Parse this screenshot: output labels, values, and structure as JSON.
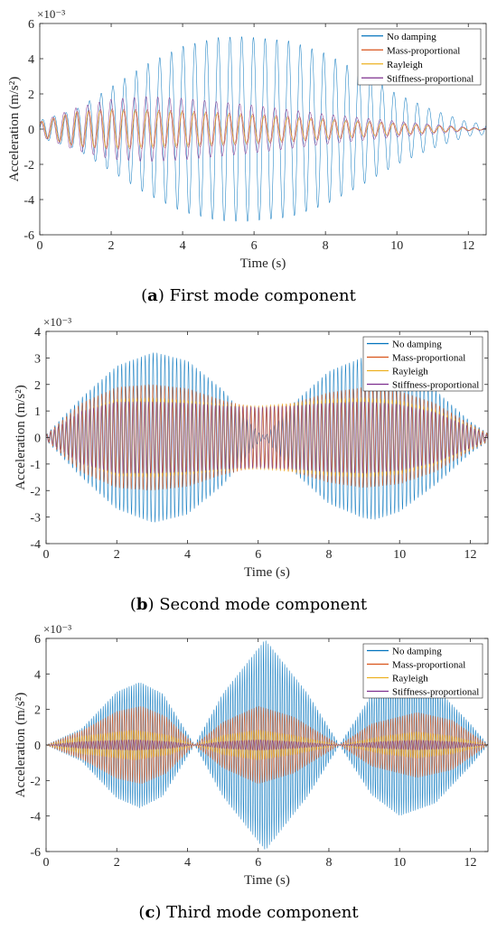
{
  "panels": [
    {
      "caption_letter": "a",
      "caption_text": "First mode component",
      "chart_data": {
        "type": "line",
        "title": "",
        "xlabel": "Time (s)",
        "ylabel": "Acceleration (m/s²)",
        "y_multiplier_label": "×10⁻³",
        "xlim": [
          0,
          12.5
        ],
        "ylim": [
          -6,
          6
        ],
        "xticks": [
          0,
          2,
          4,
          6,
          8,
          10,
          12
        ],
        "yticks": [
          -6,
          -4,
          -2,
          0,
          2,
          4,
          6
        ],
        "legend_position": "top-right",
        "series": [
          {
            "name": "No damping",
            "color": "#0072BD",
            "frequency_hz": 3.05,
            "envelope_t": [
              0,
              0.5,
              1,
              2,
              3,
              4,
              5,
              5.75,
              7,
              8,
              9,
              10,
              11,
              12,
              12.5
            ],
            "envelope_amp": [
              0.5,
              0.8,
              1.1,
              2.4,
              3.7,
              4.7,
              5.2,
              5.25,
              5.0,
              4.3,
              3.2,
              2.0,
              1.1,
              0.4,
              0.3
            ]
          },
          {
            "name": "Mass-proportional",
            "color": "#D95319",
            "frequency_hz": 3.05,
            "envelope_t": [
              0,
              1,
              2,
              3,
              4,
              5,
              6,
              8,
              10,
              12,
              12.5
            ],
            "envelope_amp": [
              0.4,
              1.0,
              1.15,
              1.1,
              1.05,
              0.95,
              0.85,
              0.6,
              0.35,
              0.08,
              0.04
            ]
          },
          {
            "name": "Rayleigh",
            "color": "#EDB120",
            "frequency_hz": 3.05,
            "envelope_t": [
              0,
              1,
              2,
              3,
              4,
              5,
              6,
              8,
              10,
              12,
              12.5
            ],
            "envelope_amp": [
              0.4,
              0.95,
              1.05,
              1.0,
              0.95,
              0.85,
              0.75,
              0.5,
              0.28,
              0.07,
              0.03
            ]
          },
          {
            "name": "Stiffness-proportional",
            "color": "#7E2F8E",
            "frequency_hz": 3.05,
            "envelope_t": [
              0,
              1,
              2,
              3,
              4,
              5,
              6,
              7,
              8,
              10,
              12,
              12.5
            ],
            "envelope_amp": [
              0.4,
              1.2,
              1.7,
              1.85,
              1.75,
              1.55,
              1.35,
              1.1,
              0.85,
              0.45,
              0.1,
              0.05
            ]
          }
        ]
      }
    },
    {
      "caption_letter": "b",
      "caption_text": "Second mode component",
      "chart_data": {
        "type": "line",
        "title": "",
        "xlabel": "Time (s)",
        "ylabel": "Acceleration (m/s²)",
        "y_multiplier_label": "×10⁻³",
        "xlim": [
          0,
          12.5
        ],
        "ylim": [
          -4,
          4
        ],
        "xticks": [
          0,
          2,
          4,
          6,
          8,
          10,
          12
        ],
        "yticks": [
          -4,
          -3,
          -2,
          -1,
          0,
          1,
          2,
          3,
          4
        ],
        "legend_position": "top-right",
        "series": [
          {
            "name": "No damping",
            "color": "#0072BD",
            "frequency_hz": 9.0,
            "envelope_t": [
              0,
              1,
              2,
              3,
              3.1,
              4,
              5,
              6,
              6.2,
              7,
              8,
              9,
              9.3,
              10,
              11,
              12,
              12.5
            ],
            "envelope_amp": [
              0.1,
              1.5,
              2.7,
              3.2,
              3.2,
              2.9,
              1.8,
              0.2,
              0.05,
              1.3,
              2.5,
              3.05,
              3.1,
              2.8,
              1.8,
              0.6,
              0.15
            ]
          },
          {
            "name": "Mass-proportional",
            "color": "#D95319",
            "frequency_hz": 9.0,
            "envelope_t": [
              0,
              1,
              2,
              3,
              4,
              5,
              6,
              7,
              8,
              9,
              10,
              11,
              12,
              12.5
            ],
            "envelope_amp": [
              0.1,
              1.3,
              1.9,
              2.0,
              1.85,
              1.4,
              1.1,
              1.3,
              1.7,
              1.9,
              1.75,
              1.3,
              0.5,
              0.15
            ]
          },
          {
            "name": "Rayleigh",
            "color": "#EDB120",
            "frequency_hz": 9.0,
            "envelope_t": [
              0,
              1,
              2,
              3,
              4,
              5,
              6,
              7,
              8,
              9,
              10,
              11,
              12,
              12.5
            ],
            "envelope_amp": [
              0.1,
              1.0,
              1.45,
              1.5,
              1.4,
              1.25,
              1.2,
              1.3,
              1.45,
              1.5,
              1.4,
              1.05,
              0.45,
              0.12
            ]
          },
          {
            "name": "Stiffness-proportional",
            "color": "#7E2F8E",
            "frequency_hz": 9.0,
            "envelope_t": [
              0,
              1,
              2,
              3,
              4,
              5,
              6,
              7,
              8,
              9,
              10,
              11,
              12,
              12.5
            ],
            "envelope_amp": [
              0.1,
              1.0,
              1.35,
              1.35,
              1.3,
              1.2,
              1.15,
              1.2,
              1.3,
              1.35,
              1.25,
              0.95,
              0.4,
              0.1
            ]
          }
        ]
      }
    },
    {
      "caption_letter": "c",
      "caption_text": "Third mode component",
      "chart_data": {
        "type": "line",
        "title": "",
        "xlabel": "Time (s)",
        "ylabel": "Acceleration (m/s²)",
        "y_multiplier_label": "×10⁻³",
        "xlim": [
          0,
          12.5
        ],
        "ylim": [
          -6,
          6
        ],
        "xticks": [
          0,
          2,
          4,
          6,
          8,
          10,
          12
        ],
        "yticks": [
          -6,
          -4,
          -2,
          0,
          2,
          4,
          6
        ],
        "legend_position": "top-right",
        "series": [
          {
            "name": "No damping",
            "color": "#0072BD",
            "frequency_hz": 15.0,
            "envelope_t": [
              0,
              1,
              2,
              2.65,
              3.3,
              4.2,
              5,
              6.2,
              7.4,
              8.3,
              9.2,
              10,
              11,
              12,
              12.5
            ],
            "envelope_amp": [
              0,
              0.9,
              3.0,
              3.55,
              2.9,
              0,
              2.9,
              5.95,
              2.9,
              0,
              2.8,
              4.0,
              3.3,
              1.2,
              0
            ]
          },
          {
            "name": "Mass-proportional",
            "color": "#D95319",
            "frequency_hz": 15.0,
            "envelope_t": [
              0,
              1,
              2,
              2.7,
              3.4,
              4.2,
              5,
              6,
              7,
              8.3,
              9.2,
              10.5,
              11.5,
              12.5
            ],
            "envelope_amp": [
              0,
              0.8,
              1.9,
              2.2,
              1.6,
              0,
              1.3,
              2.2,
              1.6,
              0,
              1.2,
              1.85,
              1.4,
              0
            ]
          },
          {
            "name": "Rayleigh",
            "color": "#EDB120",
            "frequency_hz": 15.0,
            "envelope_t": [
              0,
              1,
              2.5,
              3.5,
              4.2,
              5,
              6,
              7,
              8.3,
              9.5,
              10.5,
              11.5,
              12.5
            ],
            "envelope_amp": [
              0,
              0.5,
              0.85,
              0.55,
              0,
              0.55,
              0.85,
              0.55,
              0,
              0.5,
              0.75,
              0.5,
              0
            ]
          },
          {
            "name": "Stiffness-proportional",
            "color": "#7E2F8E",
            "frequency_hz": 15.0,
            "envelope_t": [
              0,
              1,
              2.5,
              3.5,
              4.2,
              5,
              6,
              7,
              8.3,
              9.5,
              10.5,
              11.5,
              12.5
            ],
            "envelope_amp": [
              0,
              0.2,
              0.3,
              0.2,
              0,
              0.2,
              0.3,
              0.2,
              0,
              0.2,
              0.28,
              0.2,
              0
            ]
          }
        ]
      }
    }
  ]
}
